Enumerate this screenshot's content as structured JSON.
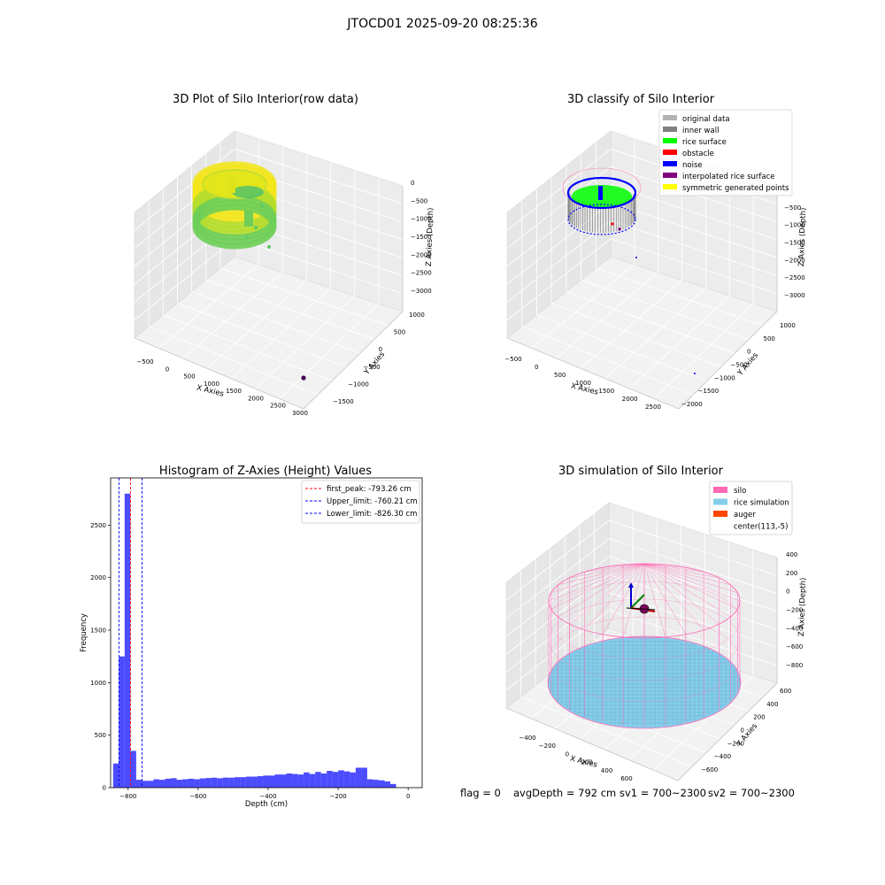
{
  "suptitle": "JTOCD01 2025-09-20 08:25:36",
  "chart_data": [
    {
      "type": "scatter3d",
      "title": "3D Plot of Silo Interior(row data)",
      "xlabel": "X Axies",
      "ylabel": "Y Axies",
      "zlabel": "Z Axies (Depth)",
      "xticks": [
        "−500",
        "0",
        "500",
        "1000",
        "1500",
        "2000",
        "2500",
        "3000"
      ],
      "yticks": [
        "1000",
        "500",
        "0",
        "−500",
        "−1000",
        "−1500"
      ],
      "zticks": [
        "0",
        "−500",
        "−1000",
        "−1500",
        "−2000",
        "−2500",
        "−3000"
      ],
      "xlim": [
        -600,
        3000
      ],
      "ylim": [
        -1550,
        1050
      ],
      "zlim": [
        -3150,
        100
      ],
      "colormap": "viridis",
      "point_groups": [
        {
          "name": "silo ring (wall + surface)",
          "approx_center": [
            400,
            0
          ],
          "radius": 600,
          "z_range": [
            -1000,
            0
          ],
          "color_top": "#f0e61e",
          "color_bottom": "#4fc46a"
        },
        {
          "name": "stray points",
          "points": [
            [
              700,
              100,
              -1400
            ],
            [
              900,
              0,
              -1500
            ],
            [
              1000,
              -300,
              -1700
            ]
          ]
        },
        {
          "name": "outlier",
          "points": [
            [
              2950,
              -1450,
              -3000
            ]
          ],
          "color": "#440154"
        }
      ]
    },
    {
      "type": "scatter3d",
      "title": "3D classify of Silo Interior",
      "xlabel": "X Axies",
      "ylabel": "Y Axies",
      "zlabel": "Z Axies (Depth)",
      "xticks": [
        "−500",
        "0",
        "500",
        "1000",
        "1500",
        "2000",
        "2500"
      ],
      "yticks": [
        "1000",
        "500",
        "0",
        "−500",
        "−1000",
        "−1500",
        "−2000"
      ],
      "zticks": [
        "0",
        "−500",
        "−1000",
        "−1500",
        "−2000",
        "−2500",
        "−3000"
      ],
      "legend_position": "upper right",
      "legend": [
        {
          "label": "original data",
          "color": "#b3b3b3"
        },
        {
          "label": "inner wall",
          "color": "#808080"
        },
        {
          "label": "rice surface",
          "color": "#00ff00"
        },
        {
          "label": "obstacle",
          "color": "#ff0000"
        },
        {
          "label": "noise",
          "color": "#0000ff"
        },
        {
          "label": "interpolated rice surface",
          "color": "#800080"
        },
        {
          "label": "symmetric generated points",
          "color": "#ffff00"
        }
      ]
    },
    {
      "type": "bar",
      "title": "Histogram of Z-Axies (Height) Values",
      "xlabel": "Depth (cm)",
      "ylabel": "Frequency",
      "xlim": [
        -850,
        40
      ],
      "ylim": [
        0,
        2950
      ],
      "xticks": [
        -800,
        -600,
        -400,
        -200,
        0
      ],
      "xticklabels": [
        "−800",
        "−600",
        "−400",
        "−200",
        "0"
      ],
      "yticks": [
        0,
        500,
        1000,
        1500,
        2000,
        2500
      ],
      "bar_color": "#0000ff",
      "bar_alpha": 0.7,
      "bin_width": 16.5,
      "bin_start": -843,
      "values": [
        230,
        1250,
        2800,
        350,
        75,
        65,
        65,
        80,
        75,
        85,
        90,
        75,
        80,
        85,
        80,
        88,
        92,
        95,
        90,
        96,
        95,
        100,
        100,
        105,
        105,
        110,
        115,
        115,
        125,
        125,
        135,
        130,
        125,
        145,
        130,
        150,
        135,
        160,
        150,
        165,
        155,
        145,
        190,
        190,
        80,
        75,
        70,
        60,
        35
      ],
      "vlines": [
        {
          "label": "first_peak: -793.26 cm",
          "x": -793.26,
          "color": "#ff0000"
        },
        {
          "label": "Upper_limit: -760.21 cm",
          "x": -760.21,
          "color": "#0000ff"
        },
        {
          "label": "Lower_limit: -826.30 cm",
          "x": -826.3,
          "color": "#0000ff"
        }
      ],
      "legend_position": "upper right"
    },
    {
      "type": "surface3d",
      "title": "3D simulation of Silo Interior",
      "xlabel": "X Axies",
      "ylabel": "Y Axies",
      "zlabel": "Z Axies (Depth)",
      "xticks": [
        "−400",
        "−200",
        "0",
        "200",
        "400",
        "600"
      ],
      "yticks": [
        "600",
        "400",
        "200",
        "0",
        "−200",
        "−400",
        "−600"
      ],
      "zticks": [
        "400",
        "200",
        "0",
        "−200",
        "−400",
        "−600",
        "−800"
      ],
      "legend_position": "upper right",
      "legend": [
        {
          "label": "silo",
          "color": "#ff69b4"
        },
        {
          "label": "rice simulation",
          "color": "#87ceeb"
        },
        {
          "label": "auger",
          "color": "#ff4500"
        },
        {
          "label": "center(113,-5)",
          "color": "#ffffff"
        }
      ]
    }
  ],
  "footer": {
    "flag": "flag = 0",
    "avg": "avgDepth = 792 cm",
    "sv1": "sv1 = 700~2300",
    "sv2": "sv2 = 700~2300"
  }
}
